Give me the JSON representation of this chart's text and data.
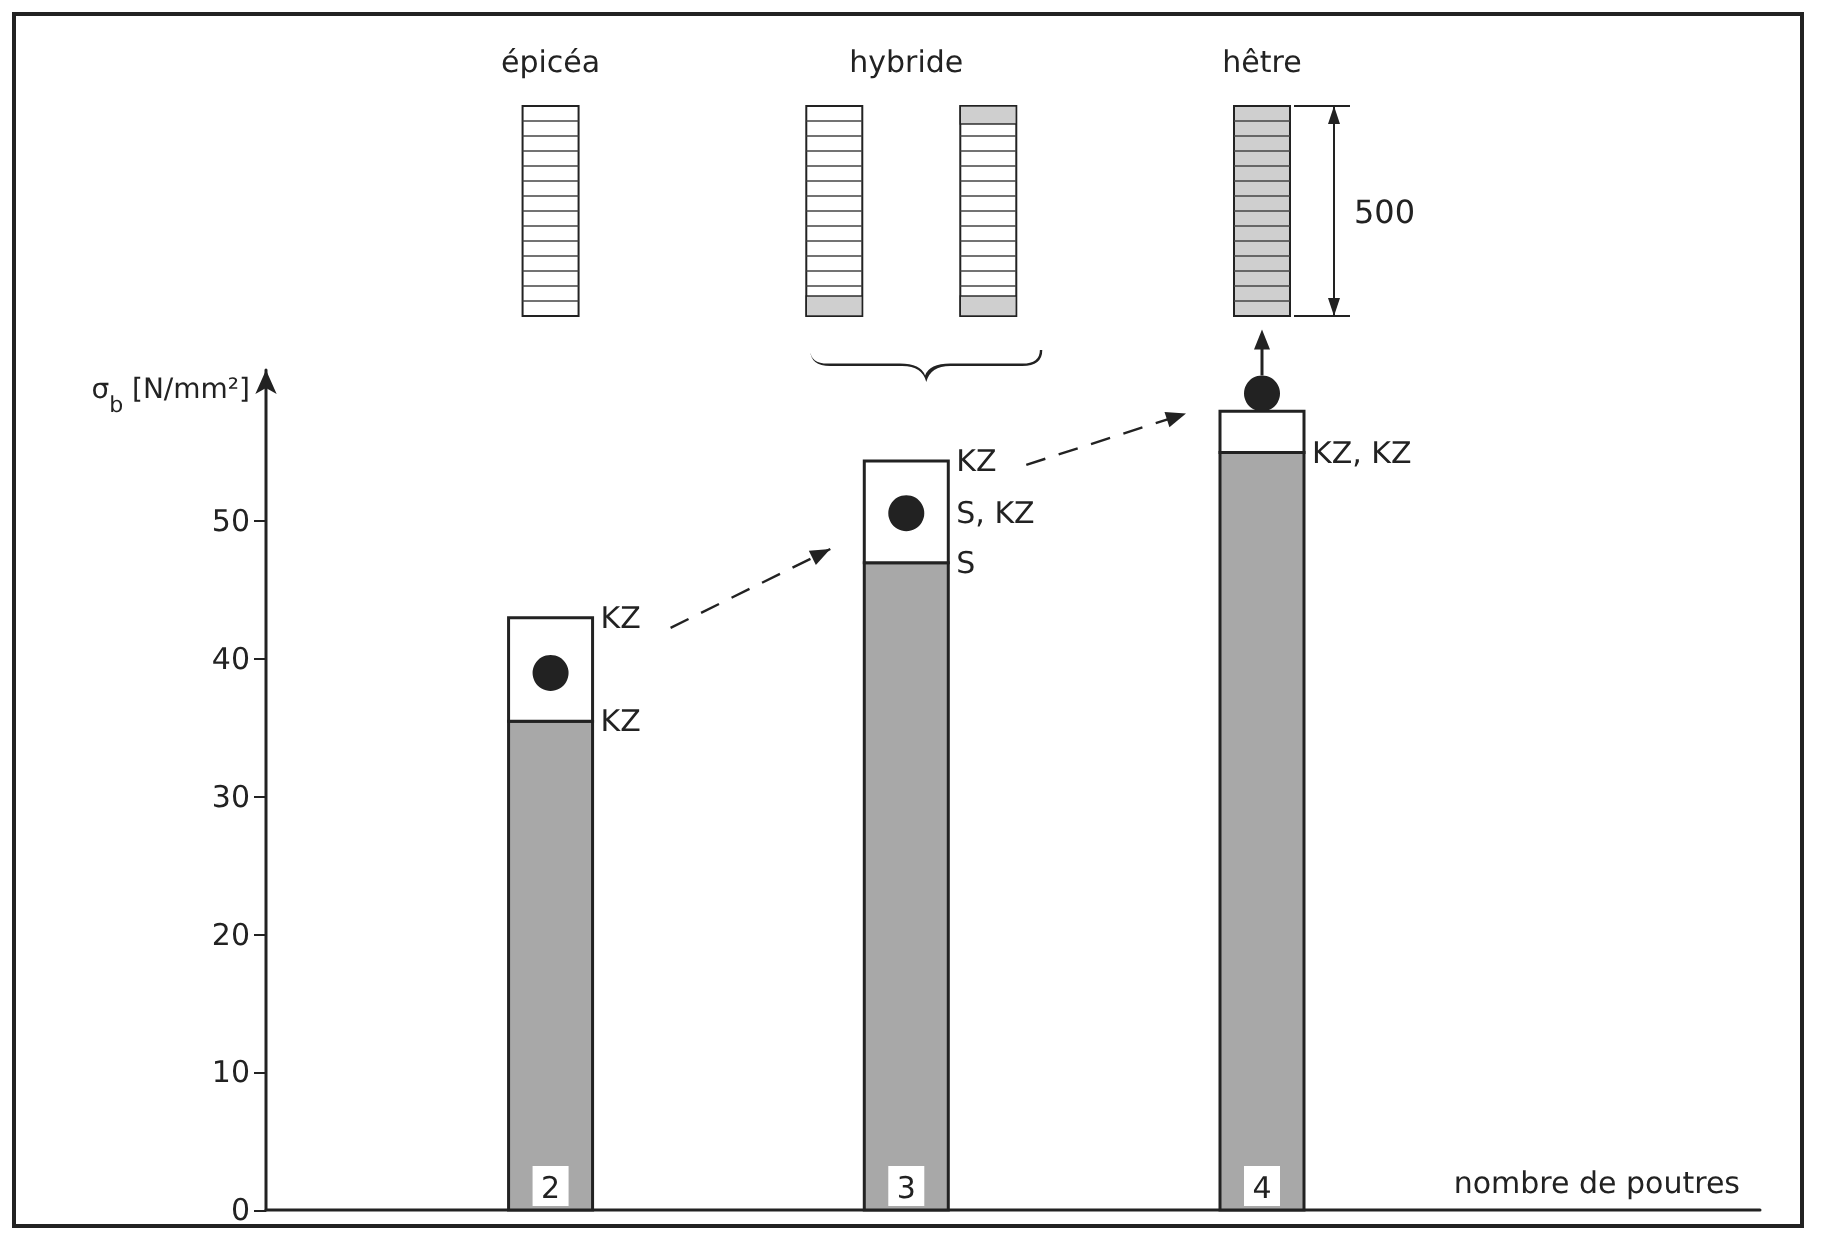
{
  "chart_data": {
    "type": "bar",
    "stacked": true,
    "xlabel": "nombre de poutres",
    "ylabel": "σ$_{b}$ [N/mm²]",
    "x": [
      2,
      3,
      4
    ],
    "xlim": [
      1.2,
      5.4
    ],
    "xticks": [
      2,
      3,
      4
    ],
    "ylim": [
      0,
      61
    ],
    "yticks": [
      0,
      10,
      20,
      30,
      40,
      50
    ],
    "marker": "circle",
    "series": [
      {
        "color": "#a8a8a8",
        "values": [
          35.5,
          47,
          55
        ]
      },
      {
        "color": "#ffffff",
        "values": [
          7.5,
          7.4,
          3
        ]
      },
      {
        "type": "scatter",
        "color": "#222222",
        "values": [
          39,
          50.6,
          59.3
        ]
      }
    ],
    "annotations": [
      {
        "text": "KZ",
        "x": 2,
        "y": 43
      },
      {
        "text": "KZ",
        "x": 2,
        "y": 35.5
      },
      {
        "text": "KZ",
        "x": 3,
        "y": 54.4
      },
      {
        "text": "S, KZ",
        "x": 3,
        "y": 50.6
      },
      {
        "text": "S",
        "x": 3,
        "y": 47
      },
      {
        "text": "KZ, KZ",
        "x": 4,
        "y": 55
      },
      "épicéa",
      "hybride",
      "hêtre",
      "500"
    ]
  }
}
